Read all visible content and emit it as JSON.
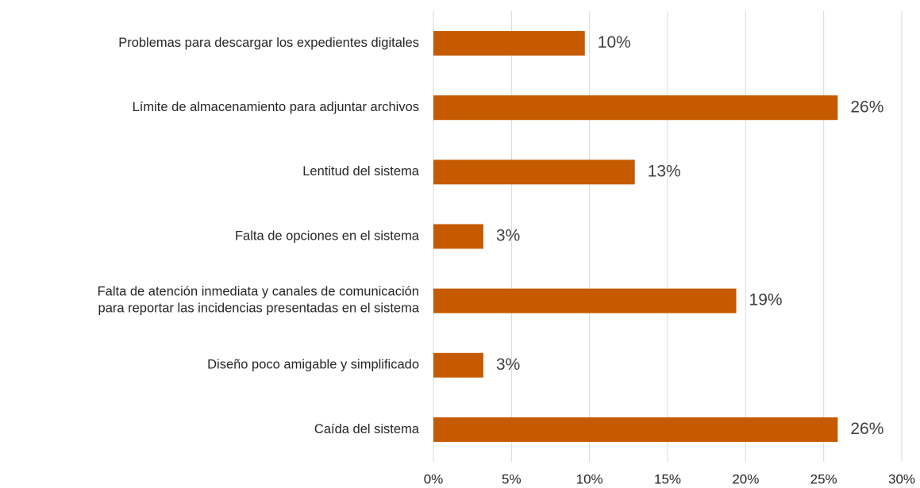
{
  "chart_data": {
    "type": "bar",
    "orientation": "horizontal",
    "categories": [
      "Problemas para descargar los expedientes digitales",
      "Límite de almacenamiento para adjuntar archivos",
      "Lentitud del sistema",
      "Falta de opciones en el sistema",
      "Falta de atención inmediata y canales de comunicación\npara reportar las incidencias presentadas en el sistema",
      "Diseño poco amigable y simplificado",
      "Caída del sistema"
    ],
    "values": [
      9.7,
      25.9,
      12.9,
      3.2,
      19.4,
      3.2,
      25.9
    ],
    "value_labels": [
      "10%",
      "26%",
      "13%",
      "3%",
      "19%",
      "3%",
      "26%"
    ],
    "color": "#c55a00",
    "xlim": [
      0,
      30
    ],
    "xticks": [
      {
        "value": 0,
        "label": "0%"
      },
      {
        "value": 5,
        "label": "5%"
      },
      {
        "value": 10,
        "label": "10%"
      },
      {
        "value": 15,
        "label": "15%"
      },
      {
        "value": 20,
        "label": "20%"
      },
      {
        "value": 25,
        "label": "25%"
      },
      {
        "value": 30,
        "label": "30%"
      }
    ],
    "grid": true
  }
}
